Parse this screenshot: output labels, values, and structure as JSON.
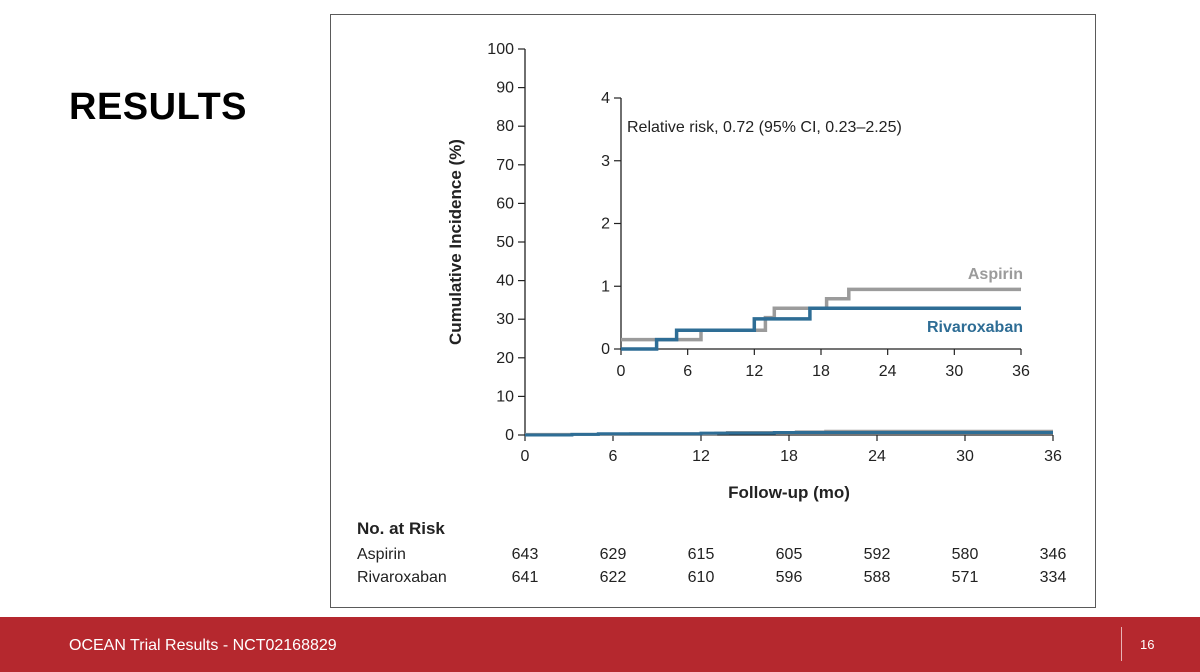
{
  "slide": {
    "title": "RESULTS",
    "footer_text": "OCEAN Trial Results - NCT02168829",
    "page_number": "16"
  },
  "chart_data": {
    "type": "line",
    "step": true,
    "ylabel": "Cumulative Incidence (%)",
    "xlabel": "Follow-up (mo)",
    "xlim": [
      0,
      36
    ],
    "ylim": [
      0,
      100
    ],
    "xticks": [
      0,
      6,
      12,
      18,
      24,
      30,
      36
    ],
    "yticks": [
      0,
      10,
      20,
      30,
      40,
      50,
      60,
      70,
      80,
      90,
      100
    ],
    "colors": {
      "aspirin": "#9b9b9b",
      "rivaroxaban": "#2e6d95"
    },
    "series": [
      {
        "name": "Aspirin",
        "x": [
          0,
          7.2,
          7.2,
          13,
          13,
          13.8,
          13.8,
          18.5,
          18.5,
          20.5,
          20.5,
          36
        ],
        "y": [
          0.15,
          0.15,
          0.3,
          0.3,
          0.5,
          0.5,
          0.65,
          0.65,
          0.8,
          0.8,
          0.95,
          0.95
        ]
      },
      {
        "name": "Rivaroxaban",
        "x": [
          0,
          3.2,
          3.2,
          5,
          5,
          12,
          12,
          17,
          17,
          36
        ],
        "y": [
          0,
          0,
          0.15,
          0.15,
          0.3,
          0.3,
          0.48,
          0.48,
          0.65,
          0.65
        ]
      }
    ],
    "inset": {
      "annotation": "Relative risk, 0.72 (95% CI, 0.23–2.25)",
      "xlim": [
        0,
        36
      ],
      "ylim": [
        0,
        4
      ],
      "xticks": [
        0,
        6,
        12,
        18,
        24,
        30,
        36
      ],
      "yticks": [
        0,
        1,
        2,
        3,
        4
      ],
      "legend_labels": [
        "Aspirin",
        "Rivaroxaban"
      ]
    },
    "at_risk": {
      "title": "No. at Risk",
      "rows": [
        {
          "name": "Aspirin",
          "values": [
            643,
            629,
            615,
            605,
            592,
            580,
            346
          ]
        },
        {
          "name": "Rivaroxaban",
          "values": [
            641,
            622,
            610,
            596,
            588,
            571,
            334
          ]
        }
      ]
    }
  }
}
